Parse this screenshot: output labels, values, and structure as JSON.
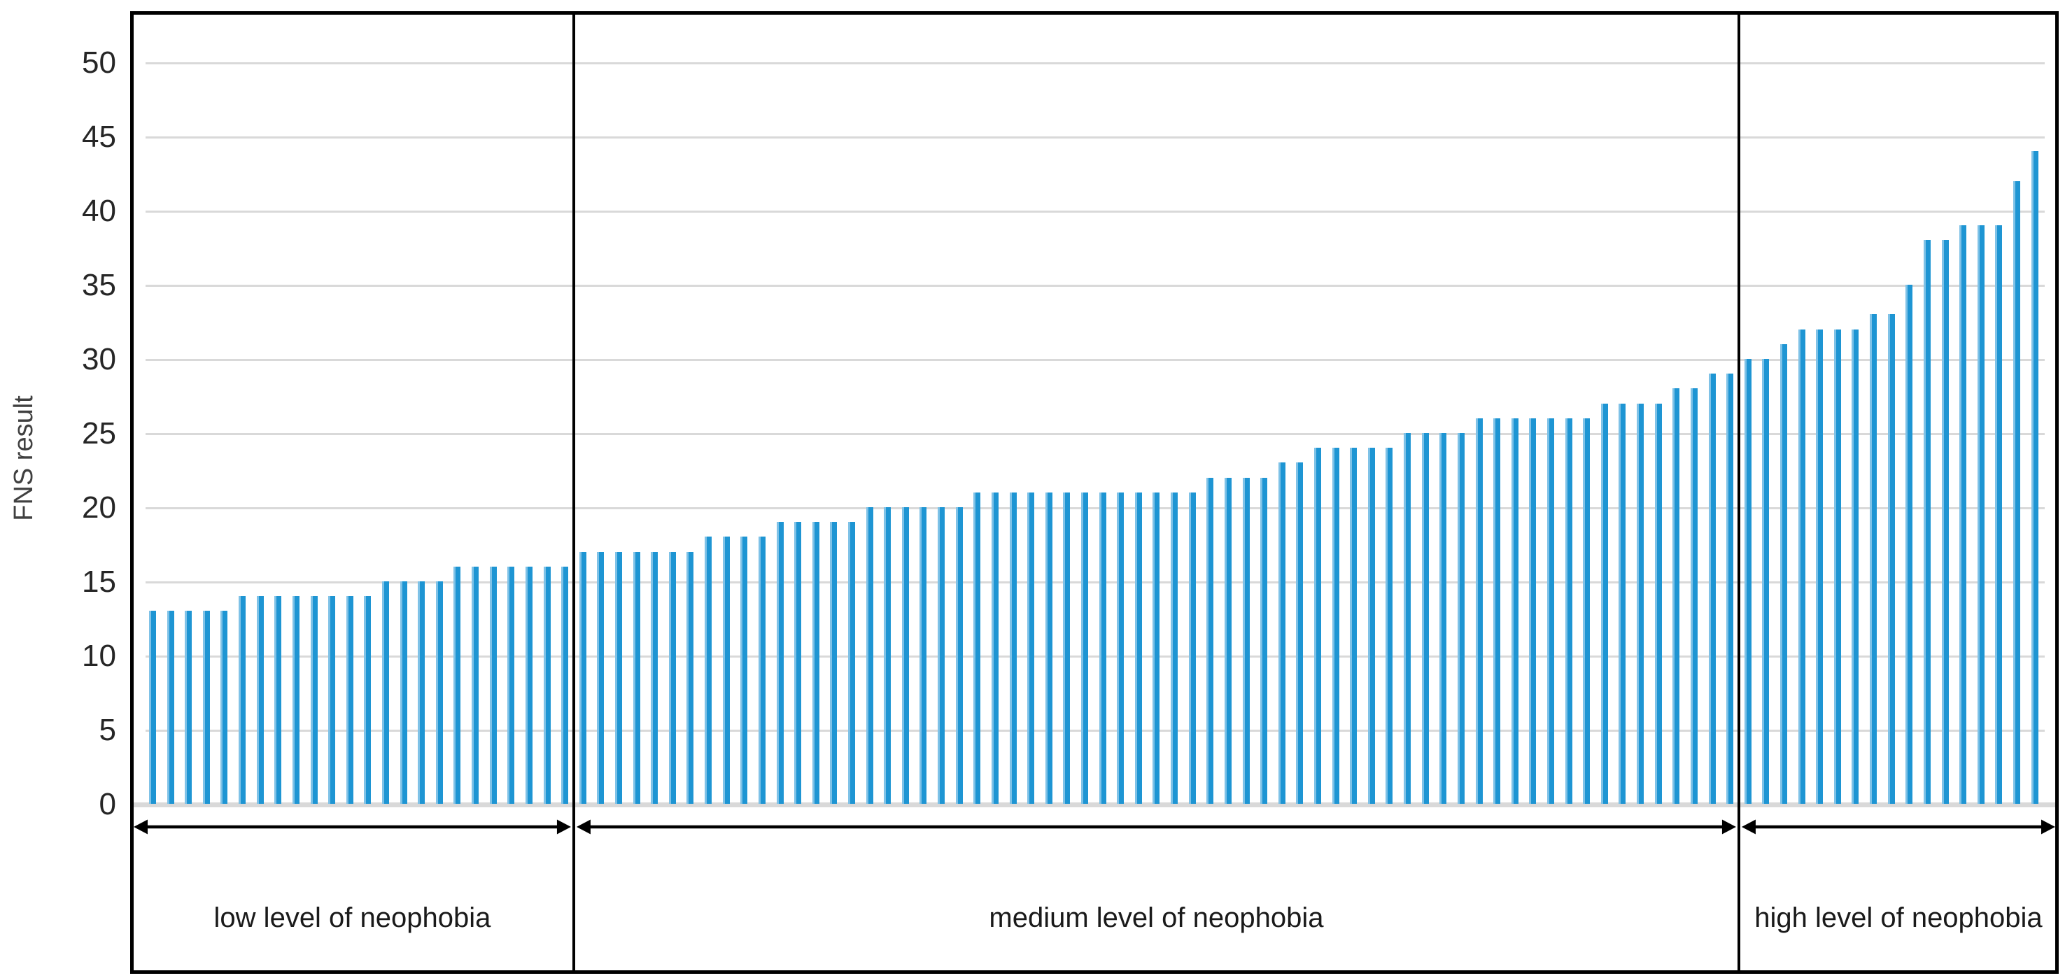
{
  "chart_data": {
    "type": "bar",
    "title": "",
    "xlabel": "",
    "ylabel": "FNS result",
    "ylim": [
      0,
      50
    ],
    "y_tick_step": 5,
    "y_ticks": [
      0,
      5,
      10,
      15,
      20,
      25,
      30,
      35,
      40,
      45,
      50
    ],
    "grid": "horizontal",
    "legend": "none",
    "n_bars": 106,
    "values": [
      13,
      13,
      13,
      13,
      13,
      14,
      14,
      14,
      14,
      14,
      14,
      14,
      14,
      15,
      15,
      15,
      15,
      16,
      16,
      16,
      16,
      16,
      16,
      16,
      17,
      17,
      17,
      17,
      17,
      17,
      17,
      18,
      18,
      18,
      18,
      19,
      19,
      19,
      19,
      19,
      20,
      20,
      20,
      20,
      20,
      20,
      21,
      21,
      21,
      21,
      21,
      21,
      21,
      21,
      21,
      21,
      21,
      21,
      21,
      22,
      22,
      22,
      22,
      23,
      23,
      24,
      24,
      24,
      24,
      24,
      25,
      25,
      25,
      25,
      26,
      26,
      26,
      26,
      26,
      26,
      26,
      27,
      27,
      27,
      27,
      28,
      28,
      29,
      29,
      30,
      30,
      31,
      32,
      32,
      32,
      32,
      33,
      33,
      35,
      38,
      38,
      39,
      39,
      39,
      42,
      44
    ],
    "regions": [
      {
        "label": "low level of neophobia",
        "count": 24,
        "min_value": 13,
        "max_value": 16
      },
      {
        "label": "medium level of neophobia",
        "count": 65,
        "min_value": 17,
        "max_value": 29
      },
      {
        "label": "high level of neophobia",
        "count": 17,
        "min_value": 30,
        "max_value": 44
      }
    ]
  },
  "colors": {
    "bar": "#1E95D3",
    "bar_edge": "#7FC2E7",
    "gridline": "#D9D9D9",
    "baseline": "#D9D9D9",
    "tick_label": "#262626",
    "axis_title": "#404040",
    "region_label": "#1A1A1A",
    "frame": "#000000",
    "background": "#FFFFFF"
  }
}
